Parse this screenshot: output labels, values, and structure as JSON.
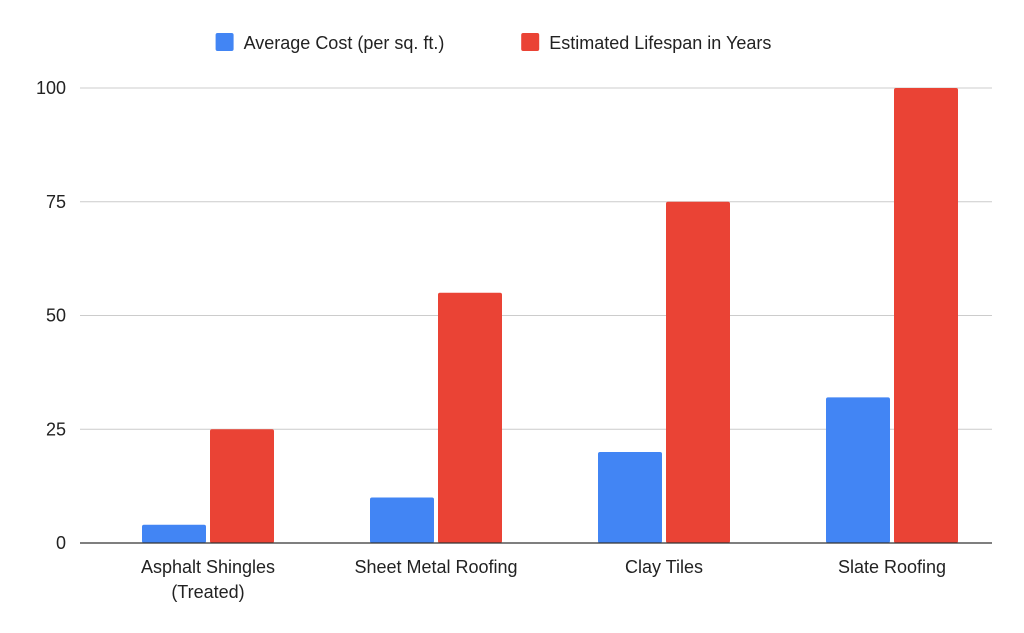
{
  "chart_data": {
    "type": "bar",
    "title": "",
    "xlabel": "",
    "ylabel": "",
    "categories": [
      [
        "Asphalt Shingles",
        "(Treated)"
      ],
      [
        "Sheet Metal Roofing"
      ],
      [
        "Clay Tiles"
      ],
      [
        "Slate Roofing"
      ]
    ],
    "series": [
      {
        "name": "Average Cost (per sq. ft.)",
        "color": "#4285f4",
        "values": [
          4,
          10,
          20,
          32
        ]
      },
      {
        "name": "Estimated Lifespan in Years",
        "color": "#ea4335",
        "values": [
          25,
          55,
          75,
          100
        ]
      }
    ],
    "ylim": [
      0,
      100
    ],
    "yticks": [
      0,
      25,
      50,
      75,
      100
    ],
    "grid": true,
    "legend_position": "top-center"
  }
}
